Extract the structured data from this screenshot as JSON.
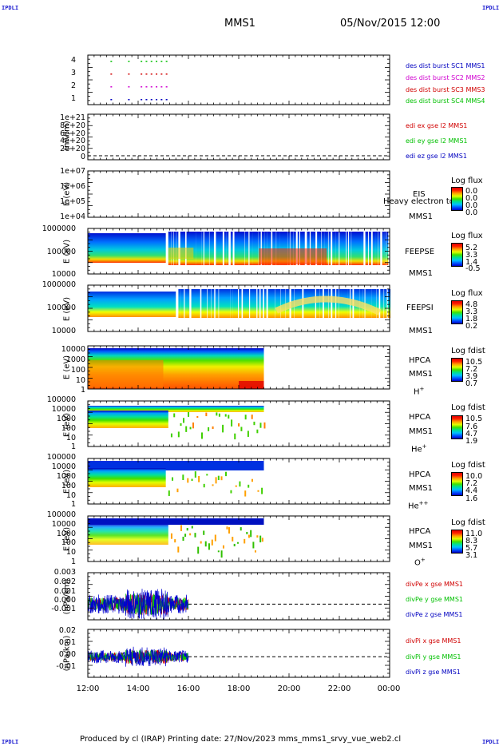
{
  "corners": {
    "tl": "IPDLI",
    "tr": "IPDLI",
    "bl": "IPDLI",
    "br": "IPDLI"
  },
  "header": {
    "spacecraft": "MMS1",
    "datetime": "05/Nov/2015 12:00"
  },
  "footer": "Produced by cl (IRAP)    Printing date: 27/Nov/2023    mms_mms1_srvy_vue_web2.cl",
  "x_ticks": [
    "12:00",
    "14:00",
    "16:00",
    "18:00",
    "20:00",
    "22:00",
    "00:00"
  ],
  "colors": {
    "red": "#d00000",
    "green": "#00c000",
    "blue": "#0000c0",
    "magenta": "#d000d0"
  },
  "chart_data": [
    {
      "type": "scatter",
      "panel": "burst",
      "yticks": [
        "4",
        "3",
        "2",
        "1"
      ],
      "legend": [
        {
          "label": "des dist burst SC1 MMS1",
          "color": "#0000c0"
        },
        {
          "label": "des dist burst SC2 MMS2",
          "color": "#d000d0"
        },
        {
          "label": "des dist burst SC3 MMS3",
          "color": "#d00000"
        },
        {
          "label": "des dist burst SC4 MMS4",
          "color": "#00c000"
        }
      ],
      "series": [
        {
          "sc": 4,
          "color": "#00c000",
          "x": [
            12.9,
            13.6,
            14.1,
            14.3,
            14.5,
            14.7,
            14.9,
            15.1
          ]
        },
        {
          "sc": 3,
          "color": "#d00000",
          "x": [
            12.9,
            13.6,
            14.1,
            14.3,
            14.5,
            14.7,
            14.9,
            15.1
          ]
        },
        {
          "sc": 2,
          "color": "#d000d0",
          "x": [
            12.9,
            13.6,
            14.1,
            14.3,
            14.5,
            14.7,
            14.9,
            15.1
          ]
        },
        {
          "sc": 1,
          "color": "#0000c0",
          "x": [
            12.9,
            13.6,
            14.1,
            14.3,
            14.5,
            14.7,
            14.9,
            15.1
          ]
        }
      ]
    },
    {
      "type": "line",
      "panel": "edi",
      "ylabel": "(mV/m)",
      "yticks": [
        "1e+21",
        "8e+20",
        "6e+20",
        "4e+20",
        "2e+20",
        "0"
      ],
      "legend": [
        {
          "label": "edi ex gse l2 MMS1",
          "color": "#d00000"
        },
        {
          "label": "edi ey gse l2 MMS1",
          "color": "#00c000"
        },
        {
          "label": "edi ez gse l2 MMS1",
          "color": "#0000c0"
        }
      ]
    },
    {
      "type": "heatmap",
      "panel": "eis",
      "ylabel": "E (eV)",
      "yticks": [
        "1e+07",
        "1e+06",
        "1e+05",
        "1e+04"
      ],
      "labels": [
        "EIS",
        "MMS1"
      ],
      "overlay": "Heavy electron tof",
      "colorbar": {
        "title": "Log flux",
        "ticks": [
          "0.0",
          "0.0",
          "0.0",
          "0.0"
        ]
      }
    },
    {
      "type": "heatmap",
      "panel": "feepse",
      "ylabel": "E (eV)",
      "yticks": [
        "1000000",
        "100000",
        "10000"
      ],
      "labels": [
        "FEEPSE",
        "MMS1"
      ],
      "colorbar": {
        "title": "Log flux",
        "ticks": [
          "5.2",
          "3.3",
          "1.4",
          "-0.5"
        ]
      }
    },
    {
      "type": "heatmap",
      "panel": "feepsi",
      "ylabel": "E (eV)",
      "yticks": [
        "1000000",
        "100000",
        "10000"
      ],
      "labels": [
        "FEEPSI",
        "MMS1"
      ],
      "colorbar": {
        "title": "Log flux",
        "ticks": [
          "4.8",
          "3.3",
          "1.8",
          "0.2"
        ]
      }
    },
    {
      "type": "heatmap",
      "panel": "hpca_h",
      "ylabel": "E (eV)",
      "yticks": [
        "10000",
        "1000",
        "100",
        "10",
        "1"
      ],
      "labels": [
        "HPCA",
        "MMS1"
      ],
      "species": "H",
      "species_sup": "+",
      "colorbar": {
        "title": "Log fdist",
        "ticks": [
          "10.5",
          "7.2",
          "3.9",
          "0.7"
        ]
      }
    },
    {
      "type": "heatmap",
      "panel": "hpca_he",
      "ylabel": "E (eV)",
      "yticks": [
        "100000",
        "10000",
        "1000",
        "100",
        "10",
        "1"
      ],
      "labels": [
        "HPCA",
        "MMS1"
      ],
      "species": "He",
      "species_sup": "+",
      "colorbar": {
        "title": "Log fdist",
        "ticks": [
          "10.5",
          "7.6",
          "4.7",
          "1.9"
        ]
      }
    },
    {
      "type": "heatmap",
      "panel": "hpca_hepp",
      "ylabel": "E (eV)",
      "yticks": [
        "100000",
        "10000",
        "1000",
        "100",
        "10",
        "1"
      ],
      "labels": [
        "HPCA",
        "MMS1"
      ],
      "species": "He",
      "species_sup": "++",
      "colorbar": {
        "title": "Log fdist",
        "ticks": [
          "10.0",
          "7.2",
          "4.4",
          "1.6"
        ]
      }
    },
    {
      "type": "heatmap",
      "panel": "hpca_o",
      "ylabel": "E (eV)",
      "yticks": [
        "100000",
        "10000",
        "1000",
        "100",
        "10",
        "1"
      ],
      "labels": [
        "HPCA",
        "MMS1"
      ],
      "species": "O",
      "species_sup": "+",
      "colorbar": {
        "title": "Log fdist",
        "ticks": [
          "11.0",
          "8.3",
          "5.7",
          "3.1"
        ]
      }
    },
    {
      "type": "line",
      "panel": "divpe",
      "ylabel": "(nPa/km)",
      "yticks": [
        "0.003",
        "0.002",
        "0.001",
        "0.000",
        "-0.001"
      ],
      "ylim": [
        -0.0015,
        0.003
      ],
      "legend": [
        {
          "label": "divPe x gse MMS1",
          "color": "#d00000"
        },
        {
          "label": "divPe y gse MMS1",
          "color": "#00c000"
        },
        {
          "label": "divPe z gse MMS1",
          "color": "#0000c0"
        }
      ]
    },
    {
      "type": "line",
      "panel": "divpi",
      "ylabel": "(nPa/km)",
      "yticks": [
        "0.02",
        "0.01",
        "0.00",
        "-0.01"
      ],
      "ylim": [
        -0.015,
        0.02
      ],
      "legend": [
        {
          "label": "divPi x gse MMS1",
          "color": "#d00000"
        },
        {
          "label": "divPi y gse MMS1",
          "color": "#00c000"
        },
        {
          "label": "divPi z gse MMS1",
          "color": "#0000c0"
        }
      ]
    }
  ]
}
